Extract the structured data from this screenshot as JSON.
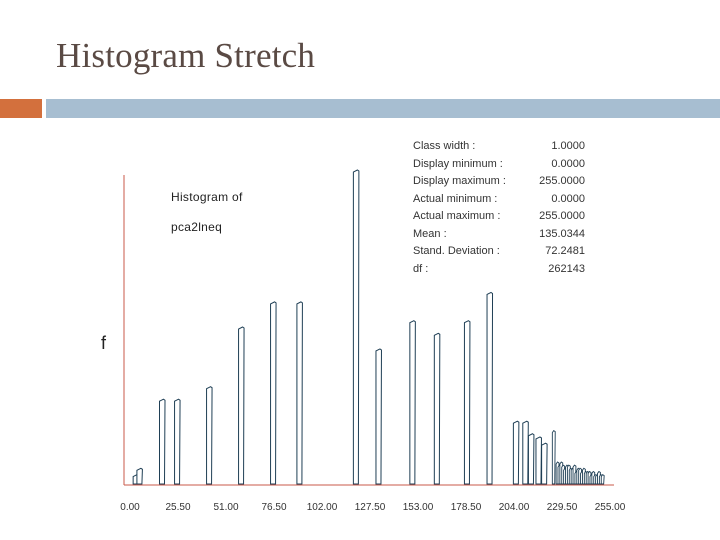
{
  "slide": {
    "title": "Histogram Stretch",
    "colors": {
      "accent_orange": "#d3703d",
      "accent_blue": "#a7bed1",
      "bar_fill": "#ffffff",
      "bar_stroke": "#1f3f55"
    }
  },
  "stats": [
    {
      "label": "Class width :",
      "value": "1.0000"
    },
    {
      "label": "Display minimum :",
      "value": "0.0000"
    },
    {
      "label": "Display maximum :",
      "value": "255.0000"
    },
    {
      "label": "Actual minimum :",
      "value": "0.0000"
    },
    {
      "label": "Actual maximum :",
      "value": "255.0000"
    },
    {
      "label": "Mean :",
      "value": "135.0344"
    },
    {
      "label": "Stand. Deviation :",
      "value": "72.2481"
    },
    {
      "label": "df :",
      "value": "262143"
    }
  ],
  "chart_data": {
    "type": "bar",
    "title_lines": [
      "Histogram of",
      "pca2lneq"
    ],
    "ylabel": "f",
    "xlabel": "",
    "xlim": [
      0,
      255
    ],
    "ylim": [
      0,
      100
    ],
    "x_ticks": [
      "0.00",
      "25.50",
      "51.00",
      "76.50",
      "102.00",
      "127.50",
      "153.00",
      "178.50",
      "204.00",
      "229.50",
      "255.00"
    ],
    "x": [
      3,
      5,
      17,
      25,
      42,
      59,
      76,
      90,
      120,
      132,
      150,
      163,
      179,
      191,
      205,
      210,
      213,
      217,
      220,
      225,
      227,
      228,
      229,
      230,
      231,
      232,
      233,
      234,
      235,
      236,
      237,
      238,
      239,
      240,
      241,
      242,
      243,
      244,
      245,
      246,
      247,
      248,
      249,
      250,
      251
    ],
    "values": [
      3,
      5,
      27,
      27,
      31,
      50,
      58,
      58,
      100,
      43,
      52,
      48,
      52,
      61,
      20,
      20,
      16,
      15,
      13,
      17,
      7,
      6,
      7,
      6,
      5,
      6,
      6,
      5,
      5,
      6,
      4,
      5,
      5,
      4,
      5,
      4,
      4,
      4,
      3,
      4,
      3,
      3,
      4,
      3,
      3
    ]
  }
}
